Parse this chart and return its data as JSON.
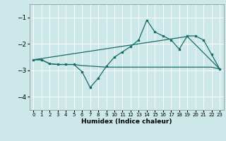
{
  "xlabel": "Humidex (Indice chaleur)",
  "xlim": [
    -0.5,
    23.5
  ],
  "ylim": [
    -4.5,
    -0.5
  ],
  "yticks": [
    -4,
    -3,
    -2,
    -1
  ],
  "xticks": [
    0,
    1,
    2,
    3,
    4,
    5,
    6,
    7,
    8,
    9,
    10,
    11,
    12,
    13,
    14,
    15,
    16,
    17,
    18,
    19,
    20,
    21,
    22,
    23
  ],
  "bg_color": "#cce8e8",
  "line_color": "#1a6b6b",
  "grid_color": "#ffffff",
  "series1_x": [
    0,
    1,
    2,
    3,
    4,
    5,
    6,
    7,
    8,
    9,
    10,
    11,
    12,
    13,
    14,
    15,
    16,
    17,
    18,
    19,
    20,
    21,
    22,
    23
  ],
  "series1_y": [
    -2.6,
    -2.6,
    -2.75,
    -2.78,
    -2.78,
    -2.78,
    -3.05,
    -3.65,
    -3.3,
    -2.85,
    -2.5,
    -2.3,
    -2.1,
    -1.85,
    -1.1,
    -1.55,
    -1.7,
    -1.85,
    -2.2,
    -1.7,
    -1.7,
    -1.85,
    -2.4,
    -2.95
  ],
  "series2_x": [
    0,
    1,
    2,
    3,
    4,
    5,
    6,
    7,
    8,
    9,
    10,
    11,
    12,
    13,
    14,
    15,
    16,
    17,
    18,
    19,
    20,
    21,
    22,
    23
  ],
  "series2_y": [
    -2.6,
    -2.6,
    -2.75,
    -2.78,
    -2.78,
    -2.78,
    -2.82,
    -2.84,
    -2.86,
    -2.88,
    -2.88,
    -2.88,
    -2.88,
    -2.88,
    -2.88,
    -2.88,
    -2.88,
    -2.88,
    -2.88,
    -2.88,
    -2.88,
    -2.88,
    -2.88,
    -2.95
  ],
  "series3_x": [
    0,
    19,
    23
  ],
  "series3_y": [
    -2.6,
    -1.72,
    -2.95
  ]
}
